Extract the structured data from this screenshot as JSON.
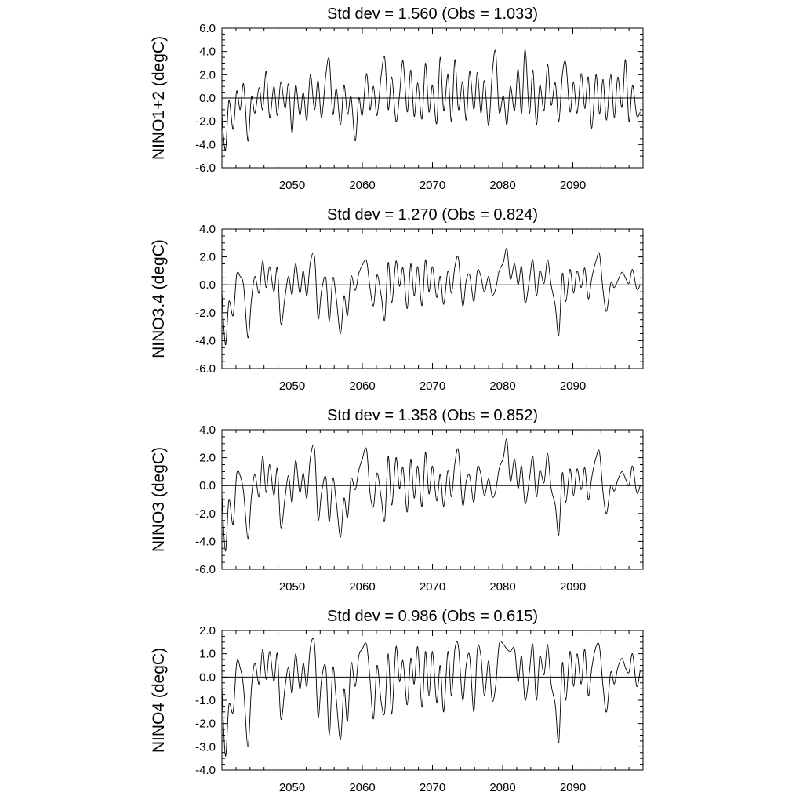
{
  "chart_data": [
    {
      "type": "line",
      "title": "Std dev = 1.560 (Obs = 1.033)",
      "ylabel": "NINO1+2 (degC)",
      "xlim": [
        2040,
        2100
      ],
      "ylim": [
        -6.0,
        6.0
      ],
      "yticks": [
        "-6.0",
        "-4.0",
        "-2.0",
        "0.0",
        "2.0",
        "4.0",
        "6.0"
      ],
      "xticks": [
        "2050",
        "2060",
        "2070",
        "2080",
        "2090"
      ],
      "reference_line": 0.0,
      "grid": false,
      "series": [
        {
          "x": [
            2040.0,
            2040.5,
            2041.0,
            2041.6,
            2042.1,
            2042.6,
            2043.1,
            2043.7,
            2044.2,
            2044.7,
            2045.3,
            2045.8,
            2046.3,
            2046.8,
            2047.4,
            2047.9,
            2048.4,
            2049.0,
            2049.5,
            2050.0,
            2050.5,
            2051.1,
            2051.6,
            2052.1,
            2052.6,
            2053.2,
            2053.7,
            2054.2,
            2054.8,
            2055.3,
            2055.8,
            2056.3,
            2056.9,
            2057.4,
            2057.9,
            2058.4,
            2059.0,
            2059.5,
            2060.0,
            2060.6,
            2061.1,
            2061.6,
            2062.1,
            2062.7,
            2063.2,
            2063.7,
            2064.2,
            2064.8,
            2065.3,
            2065.8,
            2066.4,
            2066.9,
            2067.4,
            2067.9,
            2068.5,
            2069.0,
            2069.5,
            2070.0,
            2070.6,
            2071.1,
            2071.6,
            2072.2,
            2072.7,
            2073.2,
            2073.7,
            2074.3,
            2074.8,
            2075.3,
            2075.9,
            2076.4,
            2076.9,
            2077.4,
            2078.0,
            2078.5,
            2079.0,
            2079.5,
            2080.1,
            2080.6,
            2081.1,
            2081.7,
            2082.2,
            2082.7,
            2083.2,
            2083.8,
            2084.3,
            2084.8,
            2085.3,
            2085.9,
            2086.4,
            2086.9,
            2087.5,
            2088.0,
            2088.5,
            2089.0,
            2089.6,
            2090.1,
            2090.6,
            2091.2,
            2091.7,
            2092.2,
            2092.7,
            2093.3,
            2093.8,
            2094.3,
            2094.8,
            2095.4,
            2095.9,
            2096.4,
            2097.0,
            2097.5,
            2098.0,
            2098.5,
            2099.1,
            2099.6
          ],
          "values": [
            -1.5,
            -4.5,
            -0.2,
            -2.7,
            0.6,
            -1.0,
            1.2,
            -3.7,
            0.1,
            -1.3,
            0.9,
            -1.0,
            2.3,
            -1.7,
            1.0,
            -1.5,
            1.4,
            -0.9,
            1.2,
            -3.0,
            1.1,
            -1.5,
            0.5,
            -1.9,
            2.0,
            -1.0,
            1.5,
            -1.7,
            2.0,
            3.3,
            -1.4,
            0.8,
            -2.3,
            1.1,
            -1.4,
            0.1,
            -3.7,
            0.0,
            -1.5,
            2.1,
            -1.0,
            1.0,
            -1.5,
            2.0,
            3.5,
            -1.0,
            1.8,
            -2.0,
            0.2,
            3.2,
            -1.2,
            2.4,
            -1.6,
            1.3,
            -1.8,
            3.0,
            -1.2,
            1.1,
            -2.2,
            3.5,
            -1.1,
            2.0,
            -2.0,
            3.3,
            -1.0,
            1.4,
            -1.9,
            2.3,
            -1.0,
            2.2,
            -1.3,
            1.5,
            -2.4,
            2.0,
            4.0,
            -1.2,
            0.2,
            -2.3,
            1.0,
            -1.1,
            2.5,
            -1.3,
            4.2,
            -1.3,
            2.4,
            -2.3,
            1.1,
            -1.1,
            2.9,
            -0.6,
            1.3,
            -2.0,
            2.0,
            3.0,
            -1.2,
            1.4,
            -1.3,
            2.1,
            -0.9,
            1.8,
            -2.6,
            2.0,
            -1.4,
            1.6,
            -1.9,
            2.0,
            -1.7,
            1.8,
            -0.8,
            3.3,
            -2.0,
            1.1,
            -1.5,
            -1.2
          ]
        }
      ]
    },
    {
      "type": "line",
      "title": "Std dev = 1.270 (Obs = 0.824)",
      "ylabel": "NINO3.4 (degC)",
      "xlim": [
        2040,
        2100
      ],
      "ylim": [
        -6.0,
        4.0
      ],
      "yticks": [
        "-6.0",
        "-4.0",
        "-2.0",
        "0.0",
        "2.0",
        "4.0"
      ],
      "xticks": [
        "2050",
        "2060",
        "2070",
        "2080",
        "2090"
      ],
      "reference_line": 0.0,
      "grid": false,
      "series": [
        {
          "x": [
            2040.0,
            2040.5,
            2041.0,
            2041.6,
            2042.1,
            2042.6,
            2043.1,
            2043.7,
            2044.2,
            2044.7,
            2045.3,
            2045.8,
            2046.3,
            2046.8,
            2047.4,
            2047.9,
            2048.4,
            2049.0,
            2049.5,
            2050.0,
            2050.5,
            2051.1,
            2051.6,
            2052.1,
            2052.6,
            2053.2,
            2053.7,
            2054.2,
            2054.8,
            2055.3,
            2055.8,
            2056.3,
            2056.9,
            2057.4,
            2057.9,
            2058.4,
            2059.0,
            2059.5,
            2060.0,
            2060.6,
            2061.1,
            2061.6,
            2062.1,
            2062.7,
            2063.2,
            2063.7,
            2064.2,
            2064.8,
            2065.3,
            2065.8,
            2066.4,
            2066.9,
            2067.4,
            2067.9,
            2068.5,
            2069.0,
            2069.5,
            2070.0,
            2070.6,
            2071.1,
            2071.6,
            2072.2,
            2072.7,
            2073.2,
            2073.7,
            2074.3,
            2074.8,
            2075.3,
            2075.9,
            2076.4,
            2076.9,
            2077.4,
            2078.0,
            2078.5,
            2079.0,
            2079.5,
            2080.1,
            2080.6,
            2081.1,
            2081.7,
            2082.2,
            2082.7,
            2083.2,
            2083.8,
            2084.3,
            2084.8,
            2085.3,
            2085.9,
            2086.4,
            2086.9,
            2087.5,
            2088.0,
            2088.5,
            2089.0,
            2089.6,
            2090.1,
            2090.6,
            2091.2,
            2091.7,
            2092.2,
            2092.7,
            2093.3,
            2093.8,
            2094.3,
            2094.8,
            2095.4,
            2095.9,
            2096.4,
            2097.0,
            2097.5,
            2098.0,
            2098.5,
            2099.1,
            2099.6
          ],
          "values": [
            -0.5,
            -4.3,
            -1.2,
            -2.2,
            0.7,
            0.6,
            -0.1,
            -3.8,
            -1.1,
            0.6,
            -0.6,
            1.7,
            -0.2,
            1.3,
            -0.5,
            1.2,
            -2.8,
            -0.8,
            0.6,
            -0.7,
            1.5,
            -0.6,
            1.0,
            -0.8,
            1.6,
            2.0,
            -2.4,
            -0.4,
            0.5,
            -2.6,
            0.5,
            -1.0,
            -3.5,
            -0.8,
            -2.2,
            0.6,
            -0.4,
            0.8,
            1.4,
            1.7,
            -0.2,
            -1.5,
            0.7,
            -0.8,
            -2.5,
            1.6,
            -1.3,
            1.7,
            -0.1,
            1.2,
            -1.7,
            1.5,
            -0.8,
            1.3,
            -1.5,
            1.8,
            -0.5,
            1.3,
            -0.9,
            0.6,
            -1.4,
            1.0,
            -0.6,
            1.3,
            1.9,
            -1.5,
            0.3,
            0.7,
            -1.2,
            1.0,
            0.6,
            -0.5,
            0.6,
            -0.7,
            -0.3,
            1.0,
            1.6,
            2.6,
            0.4,
            1.5,
            0.0,
            1.3,
            -1.3,
            0.3,
            1.8,
            -0.8,
            1.0,
            0.1,
            1.8,
            0.0,
            -1.5,
            -3.6,
            0.8,
            -1.2,
            1.1,
            -0.6,
            1.0,
            -0.2,
            1.2,
            -1.0,
            0.5,
            1.7,
            2.2,
            -0.4,
            -1.9,
            0.1,
            -0.2,
            0.3,
            0.9,
            0.5,
            0.1,
            1.1,
            -0.3,
            0.0
          ]
        }
      ]
    },
    {
      "type": "line",
      "title": "Std dev = 1.358 (Obs = 0.852)",
      "ylabel": "NINO3 (degC)",
      "xlim": [
        2040,
        2100
      ],
      "ylim": [
        -6.0,
        4.0
      ],
      "yticks": [
        "-6.0",
        "-4.0",
        "-2.0",
        "0.0",
        "2.0",
        "4.0"
      ],
      "xticks": [
        "2050",
        "2060",
        "2070",
        "2080",
        "2090"
      ],
      "reference_line": 0.0,
      "grid": false,
      "series": [
        {
          "x": [
            2040.0,
            2040.5,
            2041.0,
            2041.6,
            2042.1,
            2042.6,
            2043.1,
            2043.7,
            2044.2,
            2044.7,
            2045.3,
            2045.8,
            2046.3,
            2046.8,
            2047.4,
            2047.9,
            2048.4,
            2049.0,
            2049.5,
            2050.0,
            2050.5,
            2051.1,
            2051.6,
            2052.1,
            2052.6,
            2053.2,
            2053.7,
            2054.2,
            2054.8,
            2055.3,
            2055.8,
            2056.3,
            2056.9,
            2057.4,
            2057.9,
            2058.4,
            2059.0,
            2059.5,
            2060.0,
            2060.6,
            2061.1,
            2061.6,
            2062.1,
            2062.7,
            2063.2,
            2063.7,
            2064.2,
            2064.8,
            2065.3,
            2065.8,
            2066.4,
            2066.9,
            2067.4,
            2067.9,
            2068.5,
            2069.0,
            2069.5,
            2070.0,
            2070.6,
            2071.1,
            2071.6,
            2072.2,
            2072.7,
            2073.2,
            2073.7,
            2074.3,
            2074.8,
            2075.3,
            2075.9,
            2076.4,
            2076.9,
            2077.4,
            2078.0,
            2078.5,
            2079.0,
            2079.5,
            2080.1,
            2080.6,
            2081.1,
            2081.7,
            2082.2,
            2082.7,
            2083.2,
            2083.8,
            2084.3,
            2084.8,
            2085.3,
            2085.9,
            2086.4,
            2086.9,
            2087.5,
            2088.0,
            2088.5,
            2089.0,
            2089.6,
            2090.1,
            2090.6,
            2091.2,
            2091.7,
            2092.2,
            2092.7,
            2093.3,
            2093.8,
            2094.3,
            2094.8,
            2095.4,
            2095.9,
            2096.4,
            2097.0,
            2097.5,
            2098.0,
            2098.5,
            2099.1,
            2099.6
          ],
          "values": [
            -0.6,
            -4.7,
            -1.0,
            -2.8,
            0.8,
            0.7,
            -0.5,
            -3.8,
            -0.8,
            0.8,
            -0.8,
            2.1,
            -0.5,
            1.5,
            -0.7,
            1.2,
            -3.0,
            -0.8,
            0.7,
            -1.2,
            1.8,
            -0.5,
            0.9,
            -0.9,
            2.0,
            2.6,
            -2.4,
            -0.5,
            0.6,
            -2.6,
            0.5,
            -1.2,
            -3.7,
            -0.9,
            -2.3,
            0.5,
            -0.3,
            1.1,
            1.9,
            2.6,
            -0.5,
            -1.5,
            0.9,
            -0.9,
            -2.5,
            2.1,
            -1.4,
            2.0,
            -0.2,
            1.3,
            -1.9,
            1.9,
            -0.9,
            1.4,
            -1.5,
            2.4,
            -0.6,
            1.4,
            -1.1,
            0.8,
            -1.5,
            1.1,
            -0.8,
            1.6,
            2.5,
            -1.4,
            0.3,
            0.7,
            -1.2,
            1.3,
            0.8,
            -0.7,
            0.5,
            -0.8,
            -0.4,
            1.2,
            2.0,
            3.3,
            0.3,
            1.9,
            -0.2,
            1.4,
            -1.3,
            0.4,
            2.1,
            -0.8,
            1.1,
            0.2,
            2.3,
            -0.2,
            -1.4,
            -3.5,
            0.9,
            -1.2,
            1.2,
            -0.7,
            1.2,
            -0.3,
            1.3,
            -1.0,
            0.6,
            2.0,
            2.4,
            -0.5,
            -2.0,
            0.0,
            -0.4,
            0.4,
            1.0,
            0.5,
            0.0,
            1.4,
            -0.5,
            0.0
          ]
        }
      ]
    },
    {
      "type": "line",
      "title": "Std dev = 0.986 (Obs = 0.615)",
      "ylabel": "NINO4 (degC)",
      "xlim": [
        2040,
        2100
      ],
      "ylim": [
        -4.0,
        2.0
      ],
      "yticks": [
        "-4.0",
        "-3.0",
        "-2.0",
        "-1.0",
        "0.0",
        "1.0",
        "2.0"
      ],
      "xticks": [
        "2050",
        "2060",
        "2070",
        "2080",
        "2090"
      ],
      "reference_line": 0.0,
      "grid": false,
      "series": [
        {
          "x": [
            2040.0,
            2040.5,
            2041.0,
            2041.6,
            2042.1,
            2042.6,
            2043.1,
            2043.7,
            2044.2,
            2044.7,
            2045.3,
            2045.8,
            2046.3,
            2046.8,
            2047.4,
            2047.9,
            2048.4,
            2049.0,
            2049.5,
            2050.0,
            2050.5,
            2051.1,
            2051.6,
            2052.1,
            2052.6,
            2053.2,
            2053.7,
            2054.2,
            2054.8,
            2055.3,
            2055.8,
            2056.3,
            2056.9,
            2057.4,
            2057.9,
            2058.4,
            2059.0,
            2059.5,
            2060.0,
            2060.6,
            2061.1,
            2061.6,
            2062.1,
            2062.7,
            2063.2,
            2063.7,
            2064.2,
            2064.8,
            2065.3,
            2065.8,
            2066.4,
            2066.9,
            2067.4,
            2067.9,
            2068.5,
            2069.0,
            2069.5,
            2070.0,
            2070.6,
            2071.1,
            2071.6,
            2072.2,
            2072.7,
            2073.2,
            2073.7,
            2074.3,
            2074.8,
            2075.3,
            2075.9,
            2076.4,
            2076.9,
            2077.4,
            2078.0,
            2078.5,
            2079.0,
            2079.5,
            2080.1,
            2080.6,
            2081.1,
            2081.7,
            2082.2,
            2082.7,
            2083.2,
            2083.8,
            2084.3,
            2084.8,
            2085.3,
            2085.9,
            2086.4,
            2086.9,
            2087.5,
            2088.0,
            2088.5,
            2089.0,
            2089.6,
            2090.1,
            2090.6,
            2091.2,
            2091.7,
            2092.2,
            2092.7,
            2093.3,
            2093.8,
            2094.3,
            2094.8,
            2095.4,
            2095.9,
            2096.4,
            2097.0,
            2097.5,
            2098.0,
            2098.5,
            2099.1,
            2099.6
          ],
          "values": [
            -0.4,
            -3.4,
            -1.2,
            -1.5,
            0.6,
            0.4,
            -0.5,
            -3.0,
            -0.5,
            0.6,
            -0.3,
            1.2,
            -0.1,
            1.1,
            -0.2,
            1.0,
            -1.8,
            -0.4,
            0.4,
            -0.7,
            1.0,
            -0.5,
            0.6,
            -0.4,
            1.3,
            1.4,
            -1.7,
            -0.1,
            0.4,
            -2.5,
            0.4,
            -1.0,
            -2.7,
            -0.5,
            -1.9,
            0.6,
            -0.4,
            0.9,
            1.2,
            1.4,
            -0.1,
            -1.8,
            0.5,
            -1.1,
            -1.5,
            1.0,
            -1.6,
            1.3,
            -0.2,
            0.7,
            -1.2,
            0.8,
            -0.3,
            1.3,
            -1.3,
            1.1,
            -0.8,
            1.1,
            -1.1,
            0.5,
            -1.5,
            1.1,
            -0.8,
            1.2,
            1.3,
            -1.0,
            0.5,
            0.9,
            -1.5,
            1.2,
            0.9,
            -0.8,
            0.7,
            -1.0,
            -0.4,
            1.4,
            1.4,
            1.2,
            1.1,
            1.2,
            -0.2,
            0.9,
            -1.0,
            0.2,
            1.4,
            -1.0,
            0.9,
            0.1,
            1.4,
            -0.3,
            -1.2,
            -2.8,
            0.6,
            -1.0,
            1.1,
            -0.4,
            1.0,
            -0.3,
            1.2,
            -0.8,
            0.4,
            1.3,
            1.3,
            -0.4,
            -1.5,
            0.2,
            -0.3,
            0.4,
            0.8,
            0.4,
            0.2,
            1.0,
            -0.4,
            0.3
          ]
        }
      ]
    }
  ]
}
